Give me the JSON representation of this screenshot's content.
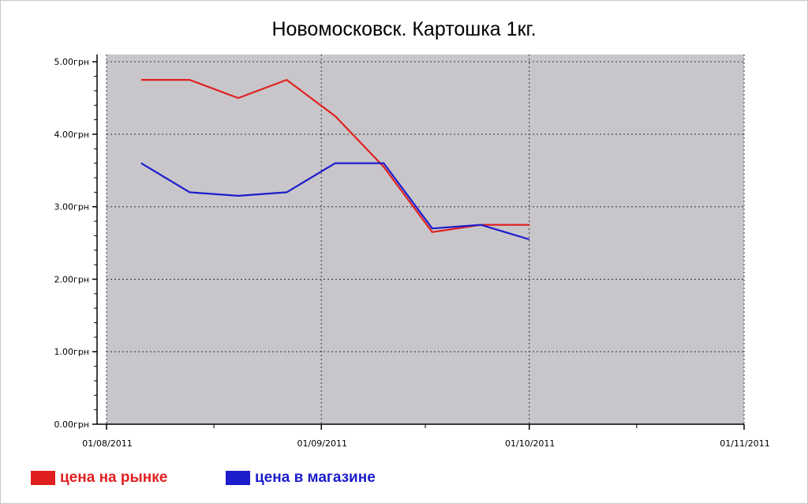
{
  "chart_data": {
    "type": "line",
    "title": "Новомосковск. Картошка 1кг.",
    "xlabel": "",
    "ylabel": "",
    "x_tick_labels": [
      "01/08/2011",
      "01/09/2011",
      "01/10/2011",
      "01/11/2011"
    ],
    "x_range": [
      "2011-08-01",
      "2011-11-01"
    ],
    "y_tick_labels": [
      "0.00грн",
      "1.00грн",
      "2.00грн",
      "3.00грн",
      "4.00грн",
      "5.00грн"
    ],
    "ylim": [
      0,
      5.1
    ],
    "grid": true,
    "plot_background": "#c8c6ca",
    "legend_position": "bottom-left",
    "series": [
      {
        "name": "цена на рынке",
        "color": "#e02020",
        "points": [
          {
            "x": "2011-08-06",
            "y": 4.75
          },
          {
            "x": "2011-08-13",
            "y": 4.75
          },
          {
            "x": "2011-08-20",
            "y": 4.5
          },
          {
            "x": "2011-08-27",
            "y": 4.75
          },
          {
            "x": "2011-09-03",
            "y": 4.25
          },
          {
            "x": "2011-09-10",
            "y": 3.55
          },
          {
            "x": "2011-09-17",
            "y": 2.65
          },
          {
            "x": "2011-09-24",
            "y": 2.75
          },
          {
            "x": "2011-10-01",
            "y": 2.75
          }
        ]
      },
      {
        "name": "цена в магазине",
        "color": "#1c1ccc",
        "points": [
          {
            "x": "2011-08-06",
            "y": 3.6
          },
          {
            "x": "2011-08-13",
            "y": 3.2
          },
          {
            "x": "2011-08-20",
            "y": 3.15
          },
          {
            "x": "2011-08-27",
            "y": 3.2
          },
          {
            "x": "2011-09-03",
            "y": 3.6
          },
          {
            "x": "2011-09-10",
            "y": 3.6
          },
          {
            "x": "2011-09-17",
            "y": 2.7
          },
          {
            "x": "2011-09-24",
            "y": 2.75
          },
          {
            "x": "2011-10-01",
            "y": 2.55
          }
        ]
      }
    ]
  }
}
